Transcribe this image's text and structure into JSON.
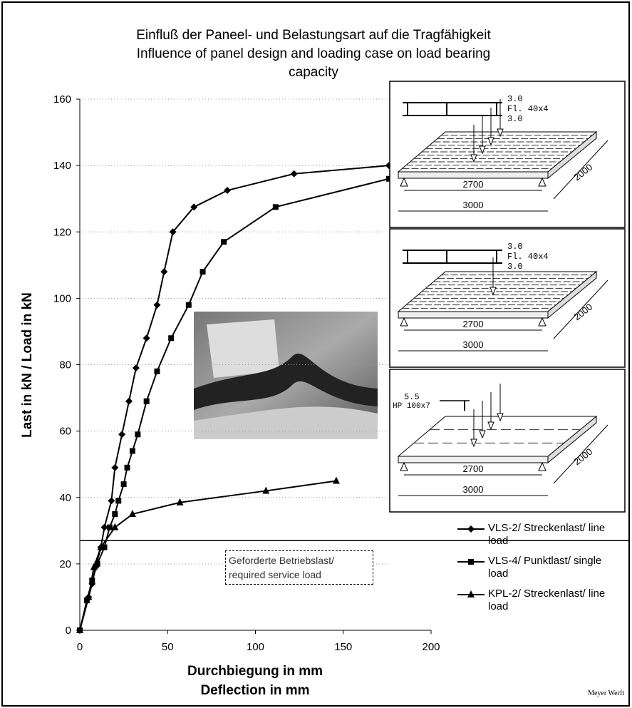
{
  "chart_data": {
    "type": "line",
    "title_lines": [
      "Einfluß der Paneel- und Belastungsart auf die Tragfähigkeit",
      "Influence of panel design and loading case on load bearing",
      "capacity"
    ],
    "ylabel": "Last in kN / Load in kN",
    "xlabel_lines": [
      "Durchbiegung in mm",
      "Deflection in mm"
    ],
    "xlim": [
      0,
      200
    ],
    "xticks": [
      0,
      50,
      100,
      150,
      200
    ],
    "ylim": [
      0,
      160
    ],
    "yticks": [
      0,
      20,
      40,
      60,
      80,
      100,
      120,
      140,
      160
    ],
    "grid": true,
    "series": [
      {
        "name": "VLS-2/ Streckenlast/ line load",
        "color": "#000000",
        "marker": "diamond",
        "x": [
          0,
          5,
          7,
          9,
          12,
          14,
          18,
          20,
          24,
          28,
          32,
          38,
          44,
          48,
          53,
          65,
          84,
          122,
          176
        ],
        "y": [
          0,
          10,
          14,
          19,
          25,
          31,
          39,
          49,
          59,
          69,
          79,
          88,
          98,
          108,
          120,
          127.5,
          132.5,
          137.5,
          140
        ]
      },
      {
        "name": "VLS-4/ Punktlast/ single load",
        "color": "#000000",
        "marker": "square",
        "x": [
          0,
          4,
          7,
          10,
          14,
          17,
          20,
          22,
          25,
          27,
          30,
          33,
          38,
          44,
          52,
          62,
          70,
          82,
          111.5,
          176
        ],
        "y": [
          0,
          9,
          15,
          20,
          25,
          31,
          35,
          39,
          44,
          49,
          54,
          59,
          69,
          78,
          88,
          98,
          108,
          117,
          127.5,
          136
        ]
      },
      {
        "name": "KPL-2/ Streckenlast/ line load",
        "color": "#000000",
        "marker": "triangle",
        "x": [
          0,
          5,
          8,
          12,
          20,
          30,
          57,
          106,
          146
        ],
        "y": [
          0,
          10,
          19,
          25,
          31,
          35,
          38.5,
          42,
          45
        ]
      }
    ],
    "reference_line": {
      "value": 27,
      "label": "Geforderte Betriebslast/ required service load"
    },
    "diagrams": [
      {
        "section": [
          "3.0",
          "Fl. 40x4",
          "3.0"
        ],
        "dims": [
          "2700",
          "3000",
          "2000"
        ]
      },
      {
        "section": [
          "3.0",
          "Fl. 40x4",
          "3.0"
        ],
        "dims": [
          "2700",
          "3000",
          "2000"
        ]
      },
      {
        "section": [
          "5.5",
          "HP 100x7"
        ],
        "dims": [
          "2700",
          "3000",
          "2000"
        ]
      }
    ],
    "credit": "Meyer Werft"
  }
}
